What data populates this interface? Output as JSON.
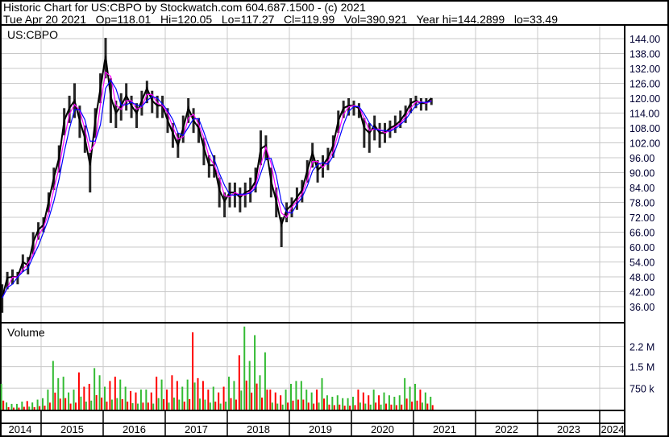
{
  "header": {
    "title": "Historic Chart for US:CBPO by Stockwatch.com 604.687.1500 - (c) 2021",
    "quote": "Tue Apr 20 2021   Op=118.01   Hi=120.05   Lo=117.27   Cl=119.99   Vol=390,921   Year hi=144.2899   lo=33.49"
  },
  "chart_data": {
    "type": "line",
    "symbol_label": "US:CBPO",
    "volume_label": "Volume",
    "price_axis": {
      "ticks": [
        "144.00",
        "138.00",
        "132.00",
        "126.00",
        "120.00",
        "114.00",
        "108.00",
        "102.00",
        "96.00",
        "90.00",
        "84.00",
        "78.00",
        "72.00",
        "66.00",
        "60.00",
        "54.00",
        "48.00",
        "42.00",
        "36.00"
      ],
      "range": [
        31,
        148
      ]
    },
    "volume_axis": {
      "ticks": [
        "2.2 M",
        "1.5 M",
        "750 k"
      ],
      "tick_values": [
        2200000,
        1500000,
        750000
      ],
      "range": [
        0,
        3000000
      ]
    },
    "year_labels": [
      "2014",
      "2015",
      "2016",
      "2017",
      "2018",
      "2019",
      "2020",
      "2021",
      "2022",
      "2023",
      "2024"
    ],
    "colors": {
      "price": "#000000",
      "ma_short": "#ff00ff",
      "ma_long": "#0000ff",
      "vol_up": "#33bb33",
      "vol_down": "#ff0000",
      "grid": "#c8c8c8"
    },
    "start_month": "2014-05",
    "monthly_close": [
      39.5,
      47.7,
      48,
      48,
      54,
      52.6,
      62,
      67,
      69,
      78.5,
      88,
      96,
      111,
      116,
      119,
      111,
      104,
      93,
      111,
      124,
      137,
      120.6,
      114,
      117,
      121,
      117,
      114,
      119,
      124,
      119,
      117,
      117,
      111,
      106,
      101,
      108,
      116,
      111,
      108,
      100,
      93,
      93,
      83,
      78.5,
      82,
      82,
      80,
      82,
      83,
      86.6,
      99.6,
      101,
      86.6,
      78.5,
      69,
      75,
      77,
      80,
      83,
      91,
      98,
      91,
      93,
      96,
      101,
      111,
      116,
      117,
      117,
      116,
      108,
      106,
      109,
      106,
      106,
      108,
      109,
      111,
      114,
      118,
      119,
      118,
      118,
      119.99
    ],
    "monthly_high": [
      45,
      50,
      51,
      50,
      57,
      56,
      66,
      70,
      72,
      82,
      92,
      101,
      116,
      121,
      126,
      117,
      109,
      98,
      116,
      130,
      144.29,
      128,
      119,
      122,
      126,
      121,
      118,
      123,
      127,
      123,
      121,
      121,
      116,
      110,
      106,
      113,
      120,
      116,
      112,
      104,
      97,
      97,
      88,
      82,
      86,
      86,
      84,
      86,
      88,
      92,
      107,
      105,
      92,
      84,
      72,
      78,
      80,
      84,
      87,
      95,
      102,
      95,
      97,
      100,
      105,
      115,
      119,
      120,
      119,
      118,
      112,
      110,
      113,
      110,
      110,
      111,
      113,
      115,
      117,
      120,
      121,
      120,
      120,
      120.05
    ],
    "monthly_low": [
      33.49,
      43,
      45,
      45,
      50,
      49,
      57,
      63,
      66,
      74,
      83,
      90,
      105,
      110,
      112,
      104,
      98,
      82,
      104,
      118,
      128,
      110,
      108,
      111,
      115,
      112,
      108,
      113,
      118,
      114,
      112,
      112,
      106,
      100,
      96,
      102,
      110,
      106,
      102,
      93,
      88,
      88,
      76,
      72,
      76,
      76,
      74,
      76,
      78,
      82,
      93,
      95,
      80,
      72,
      60,
      70,
      72,
      75,
      78,
      86,
      92,
      86,
      88,
      91,
      96,
      106,
      112,
      113,
      113,
      112,
      100,
      98,
      103,
      100,
      102,
      104,
      106,
      108,
      110,
      114,
      116,
      115,
      115,
      117.27
    ],
    "monthly_peak_volume": [
      900000,
      250000,
      200000,
      200000,
      280000,
      300000,
      250000,
      350000,
      400000,
      700000,
      1700000,
      1100000,
      1150000,
      600000,
      700000,
      1300000,
      800000,
      900000,
      1450000,
      1200000,
      800000,
      1000000,
      1150000,
      1050000,
      800000,
      650000,
      600000,
      700000,
      700000,
      600000,
      1150000,
      1050000,
      700000,
      1200000,
      1000000,
      800000,
      1050000,
      2700000,
      1100000,
      1000000,
      700000,
      800000,
      600000,
      800000,
      1150000,
      1000000,
      1900000,
      2900000,
      1700000,
      2600000,
      1200000,
      2000000,
      700000,
      600000,
      500000,
      700000,
      900000,
      1000000,
      1000000,
      700000,
      600000,
      700000,
      1100000,
      500000,
      450000,
      500000,
      400000,
      400000,
      450000,
      700000,
      600000,
      500000,
      700000,
      500000,
      600000,
      500000,
      450000,
      500000,
      1100000,
      800000,
      900000,
      700000,
      600000,
      450000
    ]
  }
}
